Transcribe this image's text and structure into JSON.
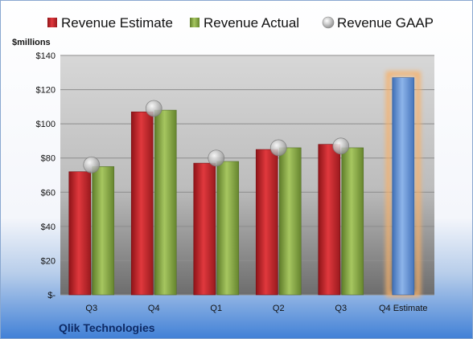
{
  "chart_data": {
    "type": "bar",
    "ylabel": "$millions",
    "ylim": [
      0,
      140
    ],
    "yticks": [
      0,
      20,
      40,
      60,
      80,
      100,
      120,
      140
    ],
    "ytick_labels": [
      "$-",
      "$20",
      "$40",
      "$60",
      "$80",
      "$100",
      "$120",
      "$140"
    ],
    "categories": [
      "Q3",
      "Q4",
      "Q1",
      "Q2",
      "Q3",
      "Q4 Estimate"
    ],
    "series": [
      {
        "name": "Revenue Estimate",
        "type": "bar",
        "color": "#c0282d",
        "values": [
          72,
          107,
          77,
          85,
          88,
          null
        ]
      },
      {
        "name": "Revenue Actual",
        "type": "bar",
        "color": "#8fb04a",
        "values": [
          75,
          108,
          78,
          86,
          86,
          null
        ]
      },
      {
        "name": "Revenue GAAP",
        "type": "scatter",
        "color": "#b8b8b8",
        "values": [
          76,
          109,
          80,
          86,
          87,
          null
        ]
      },
      {
        "type": "bar",
        "color": "#5d8fd2",
        "highlight": "#f6b16a",
        "values": [
          null,
          null,
          null,
          null,
          null,
          127
        ]
      }
    ],
    "legend_position": "top",
    "grid": true,
    "company": "Qlik Technologies"
  }
}
